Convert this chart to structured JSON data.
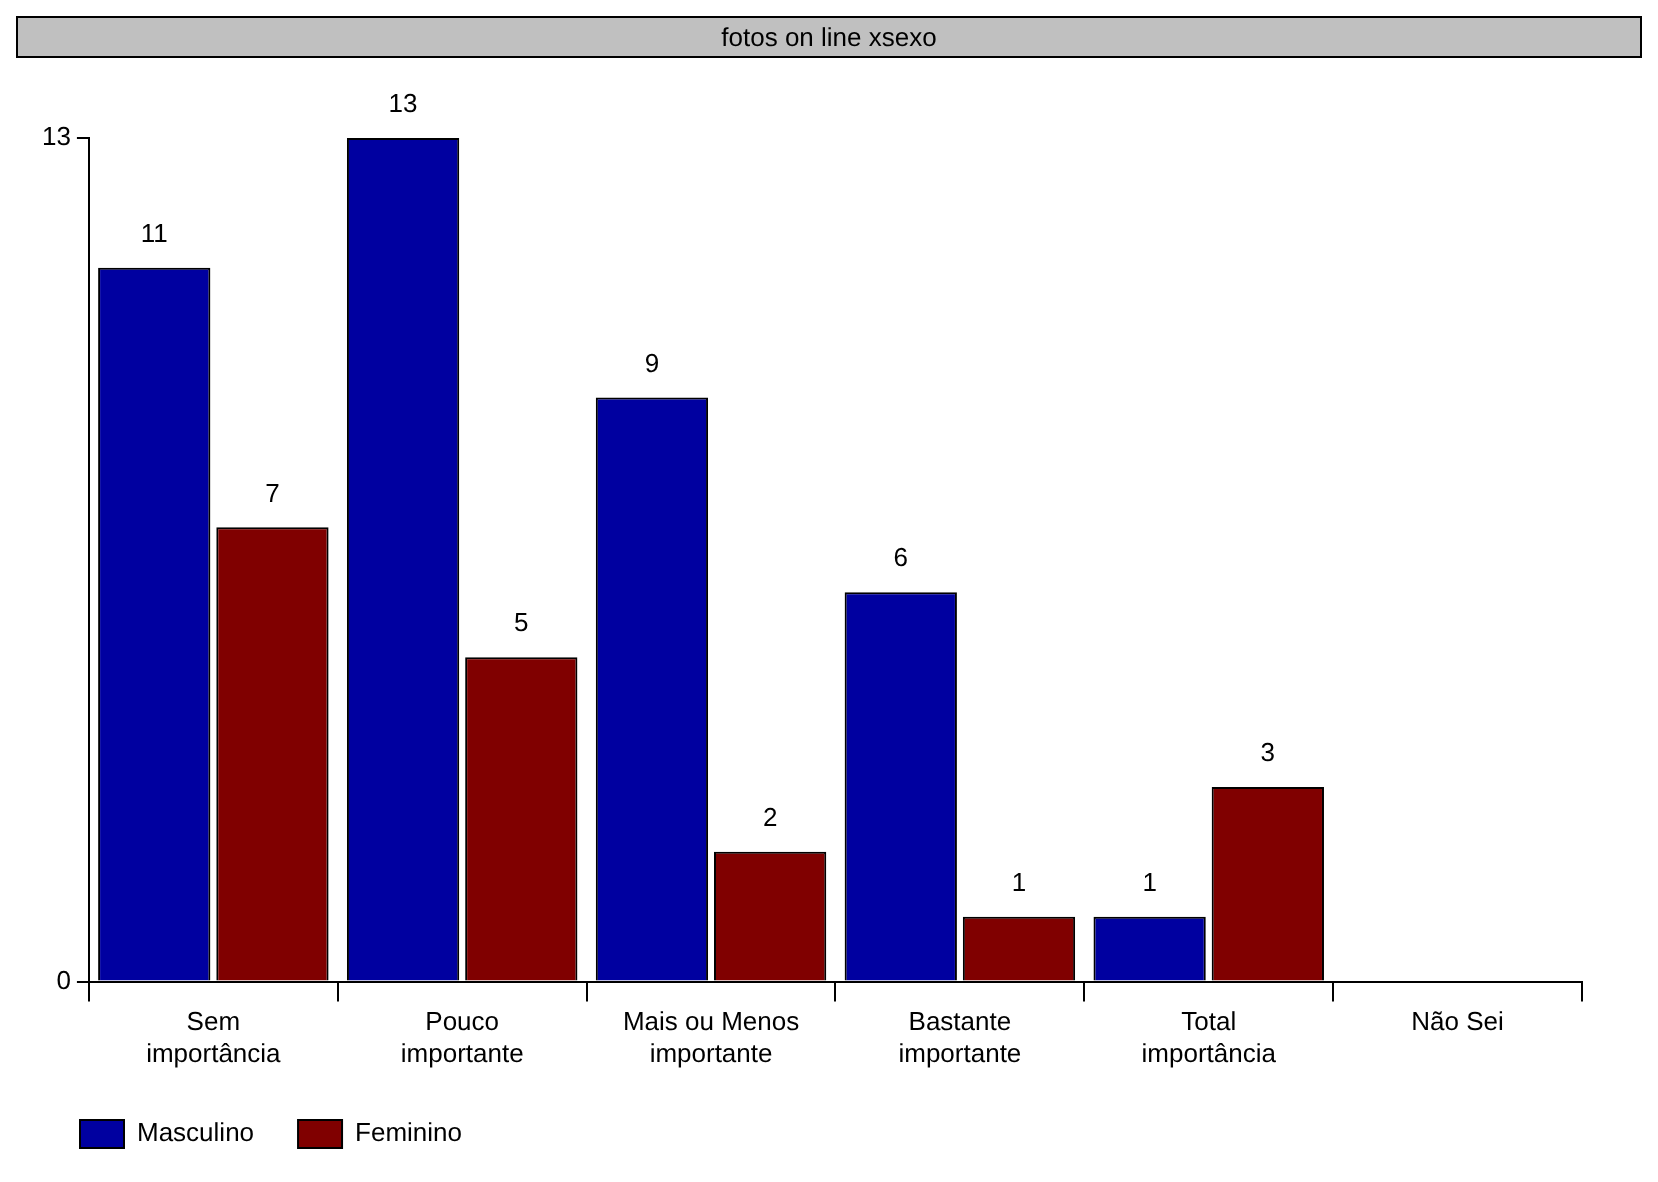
{
  "chart_data": {
    "type": "bar",
    "title": "fotos on line xsexo",
    "categories": [
      "Sem importância",
      "Pouco importante",
      "Mais ou Menos importante",
      "Bastante importante",
      "Total importância",
      "Não Sei"
    ],
    "series": [
      {
        "name": "Masculino",
        "color": "#0000a0",
        "values": [
          11,
          13,
          9,
          6,
          1,
          null
        ]
      },
      {
        "name": "Feminino",
        "color": "#800000",
        "values": [
          7,
          5,
          2,
          1,
          3,
          null
        ]
      }
    ],
    "ylim": [
      0,
      13
    ],
    "yticks": [
      0,
      13
    ],
    "grid": false,
    "legend": "bottom left",
    "data_labels": true
  }
}
